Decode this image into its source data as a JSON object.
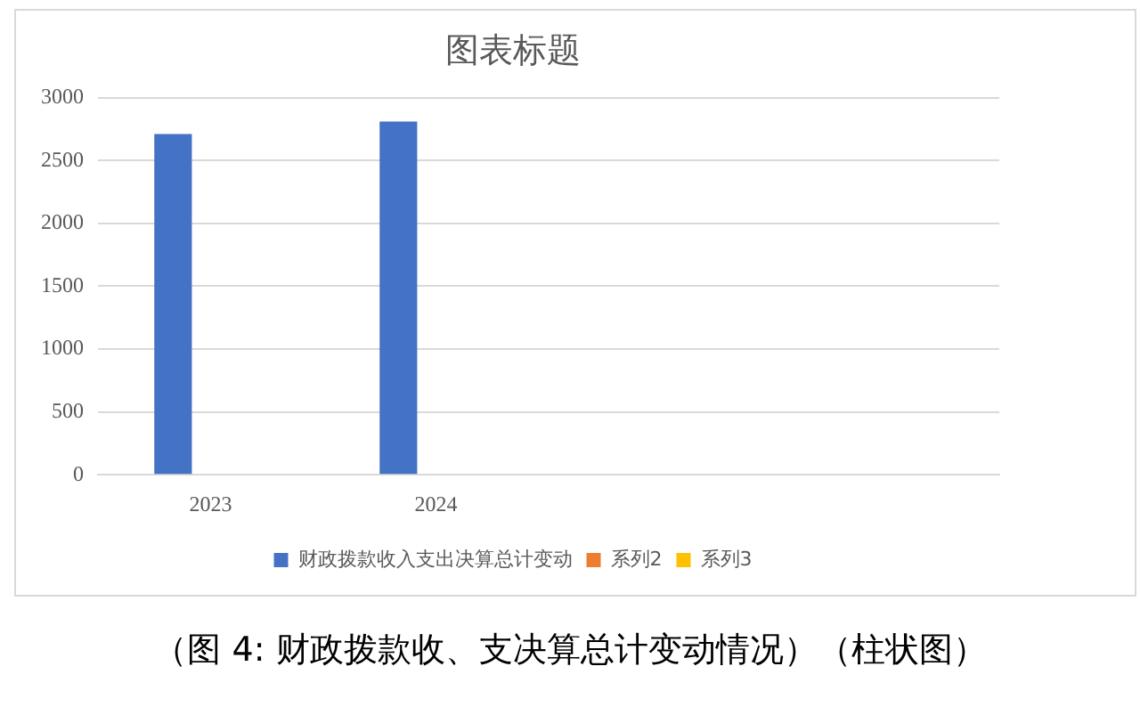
{
  "chart_data": {
    "type": "bar",
    "title": "图表标题",
    "categories": [
      "2023",
      "2024",
      null,
      null
    ],
    "series": [
      {
        "name": "财政拨款收入支出决算总计变动",
        "color": "#4472c4",
        "values": [
          2710,
          2810,
          null,
          null
        ]
      },
      {
        "name": "系列2",
        "color": "#ed7d31",
        "values": [
          0,
          0,
          null,
          null
        ]
      },
      {
        "name": "系列3",
        "color": "#ffc000",
        "values": [
          0,
          0,
          null,
          null
        ]
      }
    ],
    "ylim": [
      0,
      3000
    ],
    "yticks": [
      0,
      500,
      1000,
      1500,
      2000,
      2500,
      3000
    ],
    "grid": "y",
    "legend": "bottom",
    "annotations": [
      "（图 4: 财政拨款收、支决算总计变动情况）（柱状图）"
    ]
  }
}
